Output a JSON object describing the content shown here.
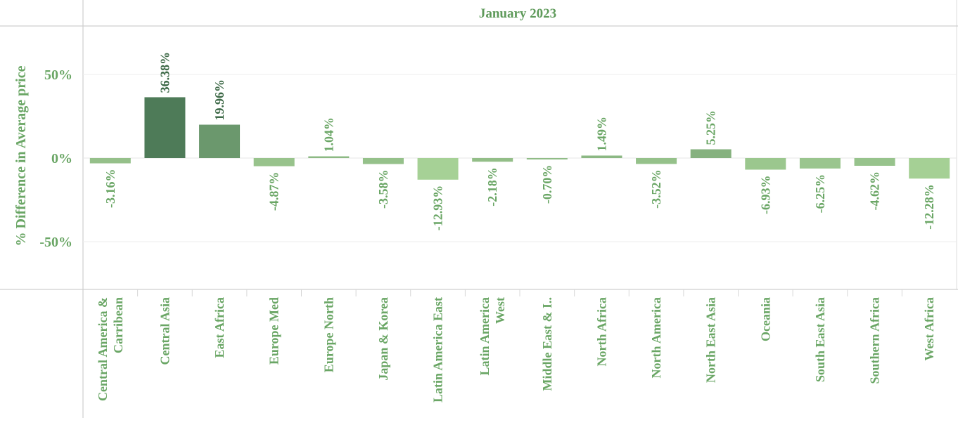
{
  "chart_data": {
    "type": "bar",
    "title": "January 2023",
    "ylabel": "% Difference in Average price",
    "xlabel": "",
    "ylim": [
      -80,
      80
    ],
    "yticks": [
      50,
      0,
      -50
    ],
    "ytick_labels": [
      "50%",
      "0%",
      "-50%"
    ],
    "grid": true,
    "categories": [
      "Central America & Carribean",
      "Central Asia",
      "East Africa",
      "Europe Med",
      "Europe North",
      "Japan & Korea",
      "Latin America East",
      "Latin America West",
      "Middle East & I..",
      "North Africa",
      "North America",
      "North East Asia",
      "Oceania",
      "South East Asia",
      "Southern Africa",
      "West Africa"
    ],
    "values": [
      -3.16,
      36.38,
      19.96,
      -4.87,
      1.04,
      -3.58,
      -12.93,
      -2.18,
      -0.7,
      1.49,
      -3.52,
      5.25,
      -6.93,
      -6.25,
      -4.62,
      -12.28
    ],
    "data_labels": [
      "-3.16%",
      "36.38%",
      "19.96%",
      "-4.87%",
      "1.04%",
      "-3.58%",
      "-12.93%",
      "-2.18%",
      "-0.70%",
      "1.49%",
      "-3.52%",
      "5.25%",
      "-6.93%",
      "-6.25%",
      "-4.62%",
      "-12.28%"
    ],
    "colors": {
      "low": "#a6d196",
      "high": "#4e7b58",
      "text_light": "#6aa665",
      "text_dark": "#3e6a48"
    }
  }
}
